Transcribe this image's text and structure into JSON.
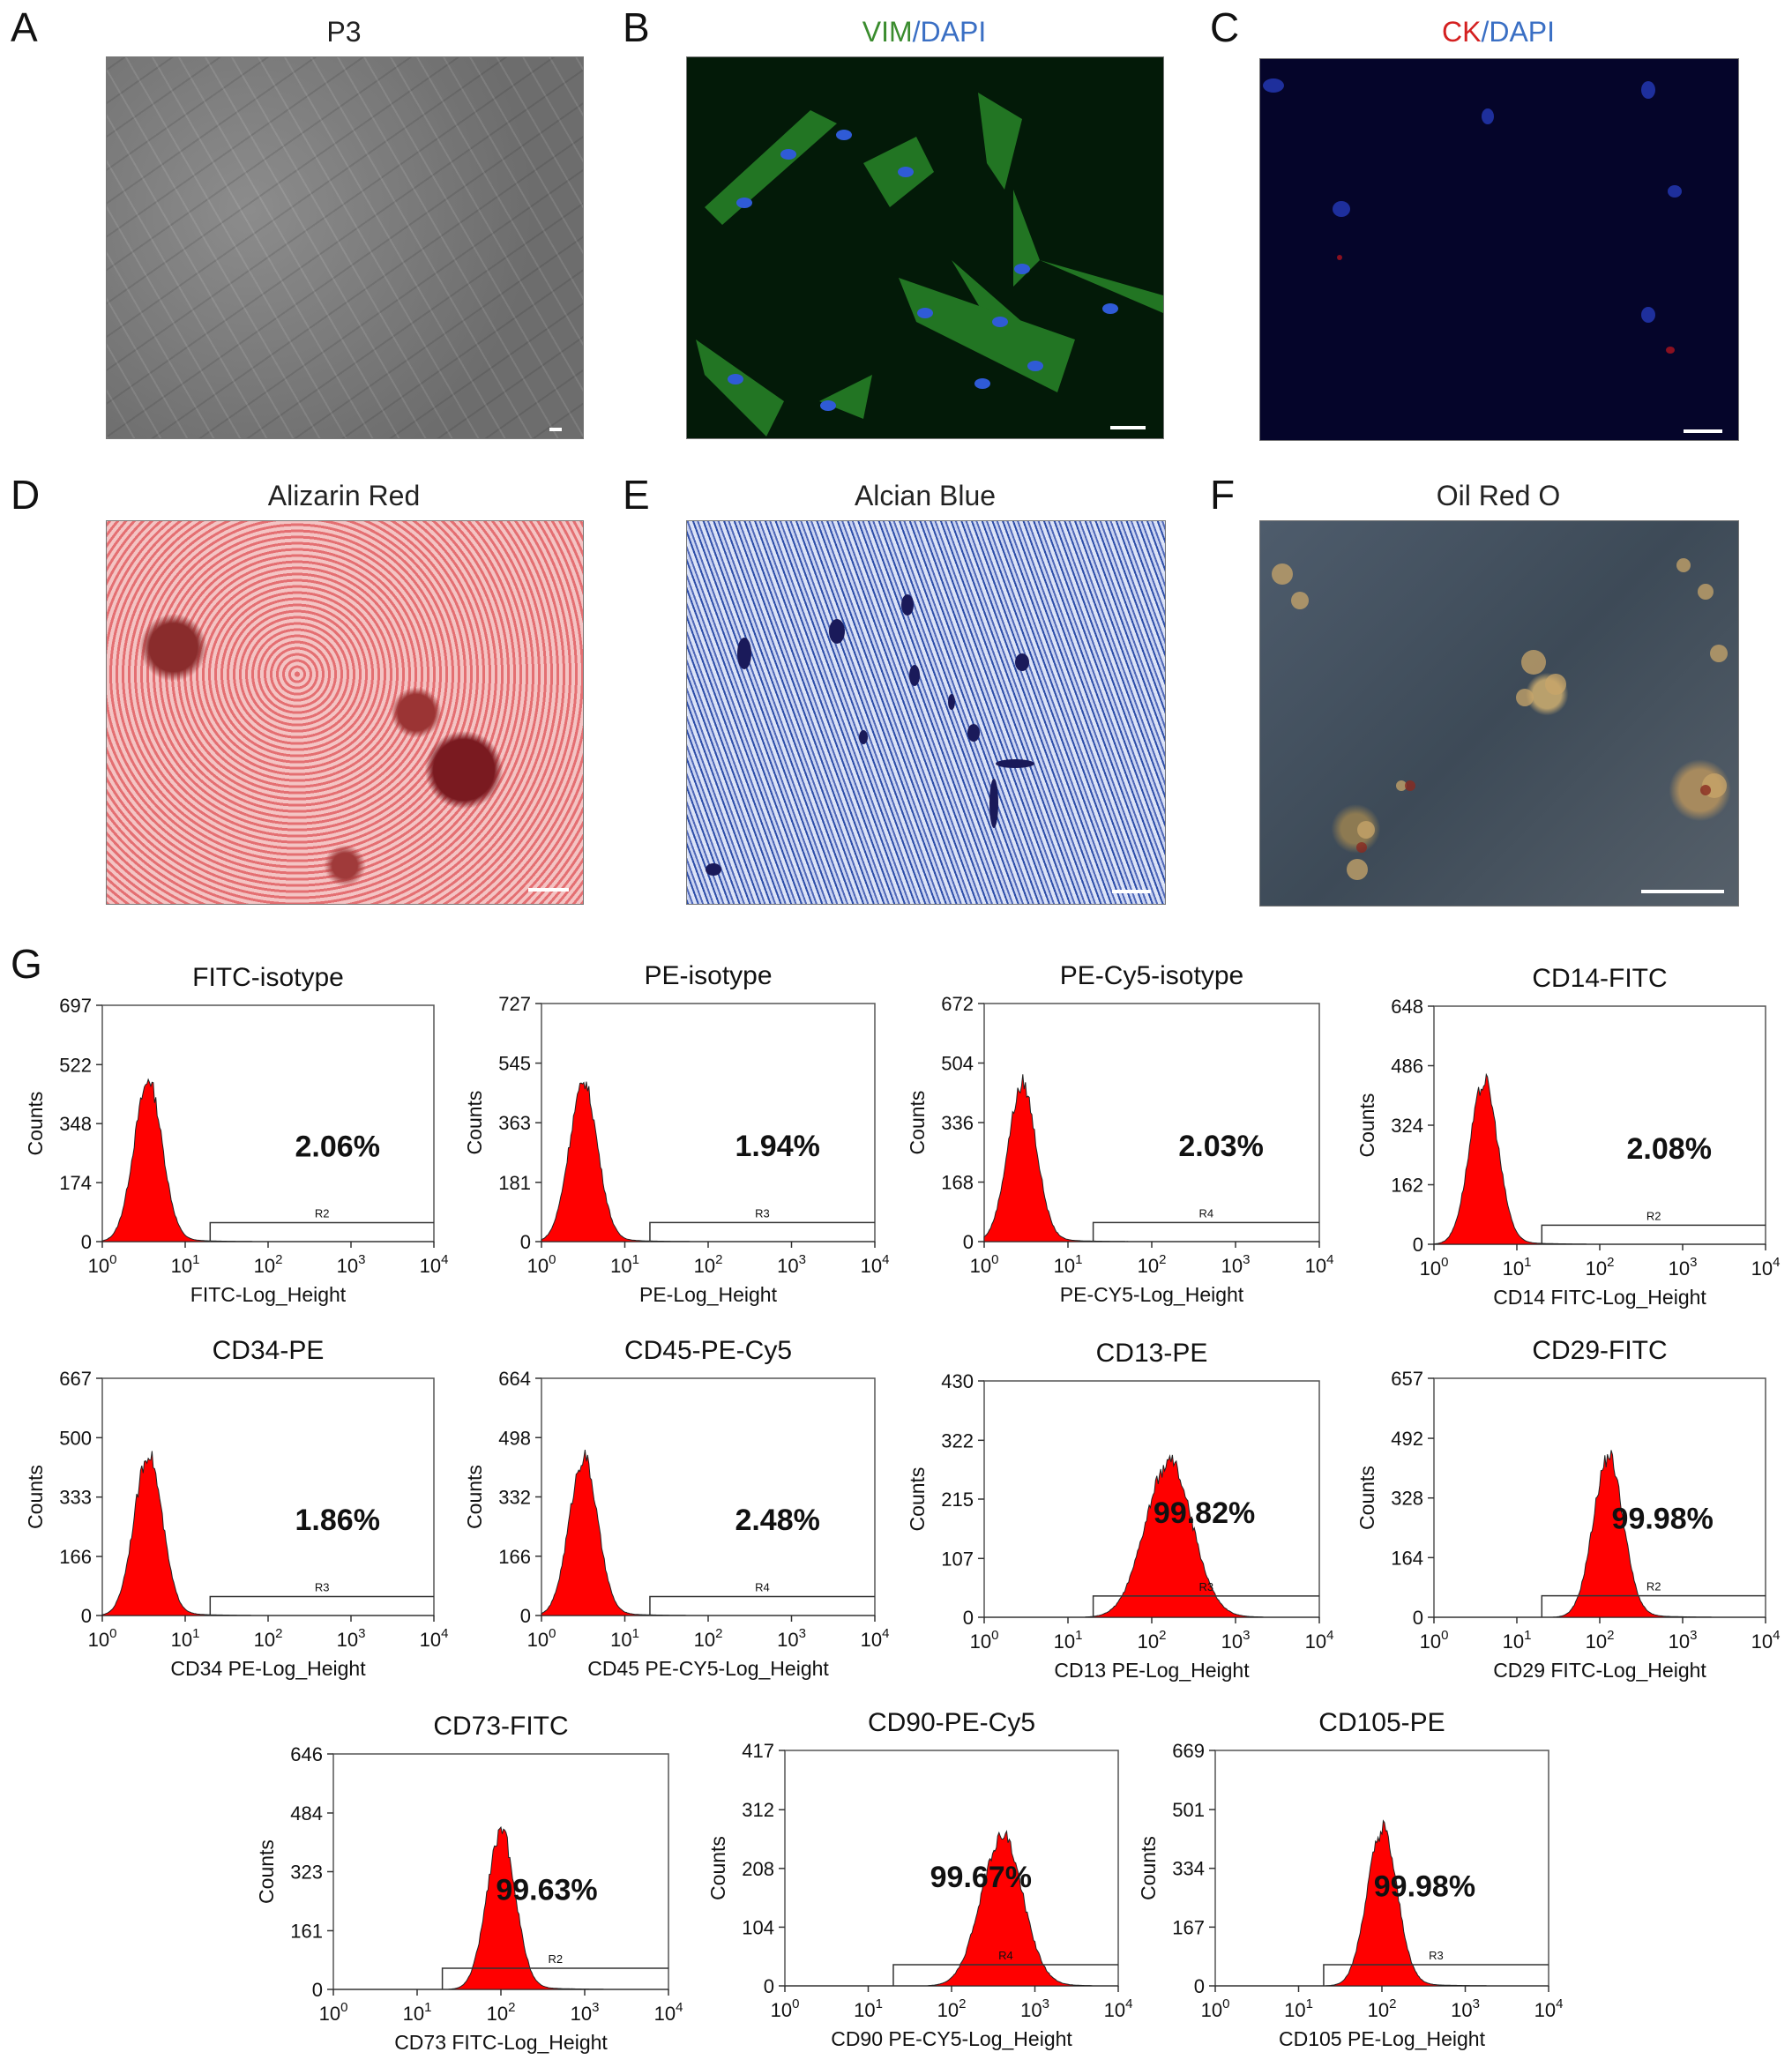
{
  "panels": {
    "A": {
      "letter": "A",
      "title": "P3"
    },
    "B": {
      "letter": "B",
      "title_part1": "VIM",
      "title_sep": "/",
      "title_part2": "DAPI"
    },
    "C": {
      "letter": "C",
      "title_part1": "CK",
      "title_sep": "/",
      "title_part2": "DAPI"
    },
    "D": {
      "letter": "D",
      "title": "Alizarin Red"
    },
    "E": {
      "letter": "E",
      "title": "Alcian Blue"
    },
    "F": {
      "letter": "F",
      "title": "Oil Red O"
    },
    "G": {
      "letter": "G"
    }
  },
  "colors": {
    "vim": "#3a8c2e",
    "dapi": "#3a6fc4",
    "ck": "#d42020",
    "histogram": "#ff0000"
  },
  "chart_data": [
    {
      "type": "area",
      "title": "FITC-isotype",
      "xlabel": "FITC-Log_Height",
      "ylabel": "Counts",
      "yticks": [
        0,
        174,
        348,
        522,
        697
      ],
      "xscale": "log",
      "xlim": [
        1,
        10000
      ],
      "peak_log": 0.55,
      "sigma": 0.17,
      "peak_count": 470,
      "gate_label": "R2",
      "gate_start": 20,
      "gate_level": 0.08,
      "percent": "2.06%"
    },
    {
      "type": "area",
      "title": "PE-isotype",
      "xlabel": "PE-Log_Height",
      "ylabel": "Counts",
      "yticks": [
        0,
        181,
        363,
        545,
        727
      ],
      "xscale": "log",
      "xlim": [
        1,
        10000
      ],
      "peak_log": 0.5,
      "sigma": 0.17,
      "peak_count": 480,
      "gate_label": "R3",
      "gate_start": 20,
      "gate_level": 0.08,
      "percent": "1.94%"
    },
    {
      "type": "area",
      "title": "PE-Cy5-isotype",
      "xlabel": "PE-CY5-Log_Height",
      "ylabel": "Counts",
      "yticks": [
        0,
        168,
        336,
        504,
        672
      ],
      "xscale": "log",
      "xlim": [
        1,
        10000
      ],
      "peak_log": 0.45,
      "sigma": 0.17,
      "peak_count": 440,
      "gate_label": "R4",
      "gate_start": 20,
      "gate_level": 0.08,
      "percent": "2.03%"
    },
    {
      "type": "area",
      "title": "CD14-FITC",
      "xlabel": "CD14 FITC-Log_Height",
      "ylabel": "Counts",
      "yticks": [
        0,
        162,
        324,
        486,
        648
      ],
      "xscale": "log",
      "xlim": [
        1,
        10000
      ],
      "peak_log": 0.6,
      "sigma": 0.17,
      "peak_count": 440,
      "gate_label": "R2",
      "gate_start": 20,
      "gate_level": 0.08,
      "percent": "2.08%"
    },
    {
      "type": "area",
      "title": "CD34-PE",
      "xlabel": "CD34 PE-Log_Height",
      "ylabel": "Counts",
      "yticks": [
        0,
        166,
        333,
        500,
        667
      ],
      "xscale": "log",
      "xlim": [
        1,
        10000
      ],
      "peak_log": 0.55,
      "sigma": 0.17,
      "peak_count": 450,
      "gate_label": "R3",
      "gate_start": 20,
      "gate_level": 0.08,
      "percent": "1.86%"
    },
    {
      "type": "area",
      "title": "CD45-PE-Cy5",
      "xlabel": "CD45 PE-CY5-Log_Height",
      "ylabel": "Counts",
      "yticks": [
        0,
        166,
        332,
        498,
        664
      ],
      "xscale": "log",
      "xlim": [
        1,
        10000
      ],
      "peak_log": 0.5,
      "sigma": 0.17,
      "peak_count": 440,
      "gate_label": "R4",
      "gate_start": 20,
      "gate_level": 0.08,
      "percent": "2.48%"
    },
    {
      "type": "area",
      "title": "CD13-PE",
      "xlabel": "CD13 PE-Log_Height",
      "ylabel": "Counts",
      "yticks": [
        0,
        107,
        215,
        322,
        430
      ],
      "xscale": "log",
      "xlim": [
        1,
        10000
      ],
      "peak_log": 2.2,
      "sigma": 0.28,
      "peak_count": 280,
      "gate_label": "R3",
      "gate_start": 20,
      "gate_level": 0.09,
      "percent": "99.82%"
    },
    {
      "type": "area",
      "title": "CD29-FITC",
      "xlabel": "CD29 FITC-Log_Height",
      "ylabel": "Counts",
      "yticks": [
        0,
        164,
        328,
        492,
        657
      ],
      "xscale": "log",
      "xlim": [
        1,
        10000
      ],
      "peak_log": 2.1,
      "sigma": 0.18,
      "peak_count": 440,
      "gate_label": "R2",
      "gate_start": 20,
      "gate_level": 0.09,
      "percent": "99.98%"
    },
    {
      "type": "area",
      "title": "CD73-FITC",
      "xlabel": "CD73 FITC-Log_Height",
      "ylabel": "Counts",
      "yticks": [
        0,
        161,
        323,
        484,
        646
      ],
      "xscale": "log",
      "xlim": [
        1,
        10000
      ],
      "peak_log": 2.0,
      "sigma": 0.17,
      "peak_count": 430,
      "gate_label": "R2",
      "gate_start": 20,
      "gate_level": 0.09,
      "percent": "99.63%"
    },
    {
      "type": "area",
      "title": "CD90-PE-Cy5",
      "xlabel": "CD90 PE-CY5-Log_Height",
      "ylabel": "Counts",
      "yticks": [
        0,
        104,
        208,
        312,
        417
      ],
      "xscale": "log",
      "xlim": [
        1,
        10000
      ],
      "peak_log": 2.6,
      "sigma": 0.25,
      "peak_count": 265,
      "gate_label": "R4",
      "gate_start": 20,
      "gate_level": 0.09,
      "percent": "99.67%"
    },
    {
      "type": "area",
      "title": "CD105-PE",
      "xlabel": "CD105 PE-Log_Height",
      "ylabel": "Counts",
      "yticks": [
        0,
        167,
        334,
        501,
        669
      ],
      "xscale": "log",
      "xlim": [
        1,
        10000
      ],
      "peak_log": 2.0,
      "sigma": 0.18,
      "peak_count": 440,
      "gate_label": "R3",
      "gate_start": 20,
      "gate_level": 0.09,
      "percent": "99.98%"
    }
  ]
}
